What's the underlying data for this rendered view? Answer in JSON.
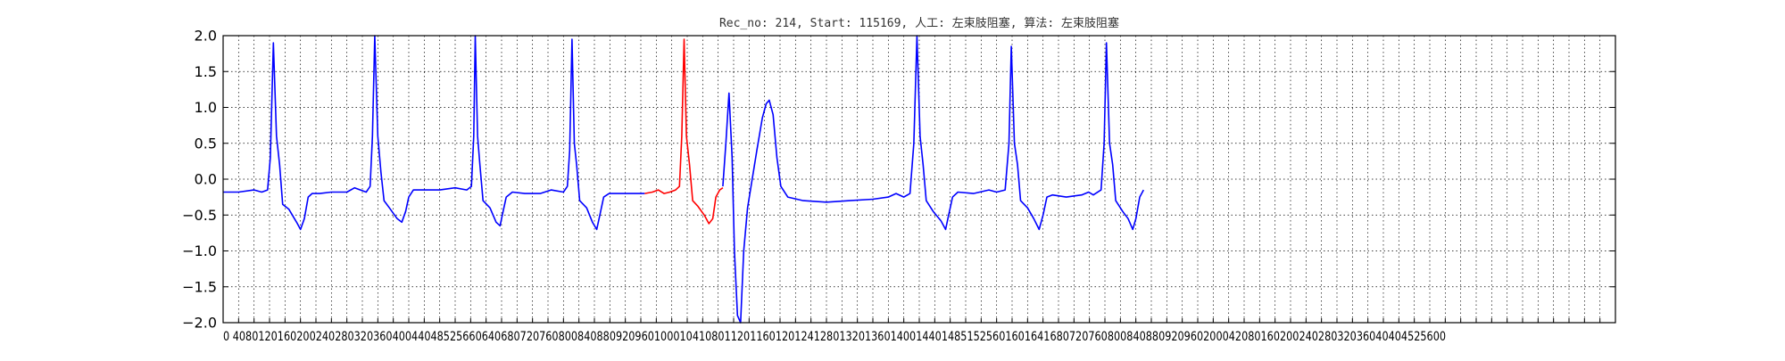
{
  "chart_data": {
    "type": "line",
    "title": "Rec_no: 214, Start: 115169, 人工: 左束肢阻塞, 算法: 左束肢阻塞",
    "xlabel": "",
    "ylabel": "",
    "xlim": [
      0,
      3600
    ],
    "ylim": [
      -2.0,
      2.0
    ],
    "grid": true,
    "y_ticks": [
      "−2.0",
      "−1.5",
      "−1.0",
      "−0.5",
      "0.0",
      "0.5",
      "1.0",
      "1.5",
      "2.0"
    ],
    "y_tick_values": [
      -2.0,
      -1.5,
      -1.0,
      -0.5,
      0.0,
      0.5,
      1.0,
      1.5,
      2.0
    ],
    "x_tick_step": 40,
    "x_ticks_visible_text": "0 4080120160200240280320360400440485256606406807207608008408809209601000104108011201160120124128013201360140014401485152560160164168072076080084088092096020004208016020024028032036040404525600",
    "colors": {
      "normal": "#0000ff",
      "highlight": "#ff0000"
    },
    "series": [
      {
        "color": "#0000ff",
        "points": [
          [
            0,
            -0.18
          ],
          [
            40,
            -0.18
          ],
          [
            80,
            -0.15
          ],
          [
            100,
            -0.18
          ],
          [
            115,
            -0.15
          ],
          [
            122,
            0.3
          ],
          [
            130,
            1.9
          ],
          [
            138,
            0.6
          ],
          [
            146,
            0.2
          ],
          [
            154,
            -0.35
          ],
          [
            170,
            -0.42
          ],
          [
            190,
            -0.6
          ],
          [
            200,
            -0.7
          ],
          [
            210,
            -0.55
          ],
          [
            220,
            -0.25
          ],
          [
            230,
            -0.2
          ],
          [
            250,
            -0.2
          ],
          [
            280,
            -0.18
          ],
          [
            320,
            -0.18
          ],
          [
            340,
            -0.12
          ],
          [
            370,
            -0.18
          ],
          [
            380,
            -0.1
          ],
          [
            386,
            0.6
          ],
          [
            392,
            2.0
          ],
          [
            400,
            0.6
          ],
          [
            408,
            0.1
          ],
          [
            416,
            -0.3
          ],
          [
            430,
            -0.4
          ],
          [
            450,
            -0.55
          ],
          [
            462,
            -0.6
          ],
          [
            472,
            -0.45
          ],
          [
            480,
            -0.25
          ],
          [
            492,
            -0.15
          ],
          [
            520,
            -0.15
          ],
          [
            560,
            -0.15
          ],
          [
            600,
            -0.12
          ],
          [
            630,
            -0.15
          ],
          [
            642,
            -0.1
          ],
          [
            648,
            0.6
          ],
          [
            652,
            2.0
          ],
          [
            658,
            0.6
          ],
          [
            664,
            0.2
          ],
          [
            672,
            -0.3
          ],
          [
            690,
            -0.4
          ],
          [
            706,
            -0.6
          ],
          [
            716,
            -0.65
          ],
          [
            724,
            -0.45
          ],
          [
            732,
            -0.25
          ],
          [
            748,
            -0.18
          ],
          [
            780,
            -0.2
          ],
          [
            820,
            -0.2
          ],
          [
            848,
            -0.15
          ],
          [
            880,
            -0.18
          ],
          [
            890,
            -0.1
          ],
          [
            896,
            0.4
          ],
          [
            902,
            1.95
          ],
          [
            908,
            0.5
          ],
          [
            914,
            0.2
          ],
          [
            922,
            -0.3
          ],
          [
            940,
            -0.4
          ],
          [
            955,
            -0.6
          ],
          [
            966,
            -0.7
          ],
          [
            974,
            -0.5
          ],
          [
            984,
            -0.25
          ],
          [
            998,
            -0.2
          ],
          [
            1040,
            -0.2
          ],
          [
            1090,
            -0.2
          ]
        ]
      },
      {
        "color": "#ff0000",
        "points": [
          [
            1090,
            -0.2
          ],
          [
            1110,
            -0.18
          ],
          [
            1125,
            -0.15
          ],
          [
            1140,
            -0.2
          ],
          [
            1155,
            -0.18
          ],
          [
            1170,
            -0.15
          ],
          [
            1180,
            -0.1
          ],
          [
            1186,
            0.6
          ],
          [
            1192,
            1.95
          ],
          [
            1198,
            0.6
          ],
          [
            1206,
            0.2
          ],
          [
            1214,
            -0.3
          ],
          [
            1228,
            -0.38
          ],
          [
            1244,
            -0.5
          ],
          [
            1256,
            -0.62
          ],
          [
            1266,
            -0.55
          ],
          [
            1274,
            -0.25
          ],
          [
            1284,
            -0.15
          ],
          [
            1292,
            -0.12
          ]
        ]
      },
      {
        "color": "#0000ff",
        "points": [
          [
            1292,
            -0.1
          ],
          [
            1300,
            0.5
          ],
          [
            1308,
            1.2
          ],
          [
            1316,
            0.3
          ],
          [
            1322,
            -1.0
          ],
          [
            1330,
            -1.9
          ],
          [
            1338,
            -2.0
          ],
          [
            1346,
            -1.0
          ],
          [
            1356,
            -0.4
          ],
          [
            1368,
            0.0
          ],
          [
            1380,
            0.4
          ],
          [
            1394,
            0.85
          ],
          [
            1404,
            1.05
          ],
          [
            1412,
            1.1
          ],
          [
            1422,
            0.9
          ],
          [
            1432,
            0.3
          ],
          [
            1442,
            -0.1
          ],
          [
            1460,
            -0.25
          ],
          [
            1500,
            -0.3
          ],
          [
            1560,
            -0.32
          ],
          [
            1620,
            -0.3
          ],
          [
            1680,
            -0.28
          ],
          [
            1720,
            -0.25
          ],
          [
            1740,
            -0.2
          ],
          [
            1760,
            -0.25
          ],
          [
            1776,
            -0.2
          ],
          [
            1786,
            0.5
          ],
          [
            1794,
            2.0
          ],
          [
            1802,
            0.6
          ],
          [
            1810,
            0.2
          ],
          [
            1818,
            -0.3
          ],
          [
            1836,
            -0.45
          ],
          [
            1856,
            -0.58
          ],
          [
            1868,
            -0.7
          ],
          [
            1876,
            -0.5
          ],
          [
            1886,
            -0.25
          ],
          [
            1900,
            -0.18
          ],
          [
            1940,
            -0.2
          ],
          [
            1980,
            -0.15
          ],
          [
            2000,
            -0.18
          ],
          [
            2022,
            -0.15
          ],
          [
            2032,
            0.5
          ],
          [
            2038,
            1.85
          ],
          [
            2046,
            0.5
          ],
          [
            2054,
            0.2
          ],
          [
            2062,
            -0.3
          ],
          [
            2080,
            -0.4
          ],
          [
            2096,
            -0.55
          ],
          [
            2110,
            -0.7
          ],
          [
            2120,
            -0.5
          ],
          [
            2130,
            -0.25
          ],
          [
            2144,
            -0.22
          ],
          [
            2180,
            -0.25
          ],
          [
            2220,
            -0.22
          ],
          [
            2238,
            -0.18
          ],
          [
            2250,
            -0.22
          ],
          [
            2270,
            -0.15
          ],
          [
            2278,
            0.5
          ],
          [
            2284,
            1.9
          ],
          [
            2292,
            0.5
          ],
          [
            2300,
            0.2
          ],
          [
            2308,
            -0.3
          ],
          [
            2326,
            -0.45
          ],
          [
            2340,
            -0.55
          ],
          [
            2352,
            -0.7
          ],
          [
            2360,
            -0.55
          ],
          [
            2370,
            -0.25
          ],
          [
            2380,
            -0.15
          ]
        ]
      }
    ]
  }
}
